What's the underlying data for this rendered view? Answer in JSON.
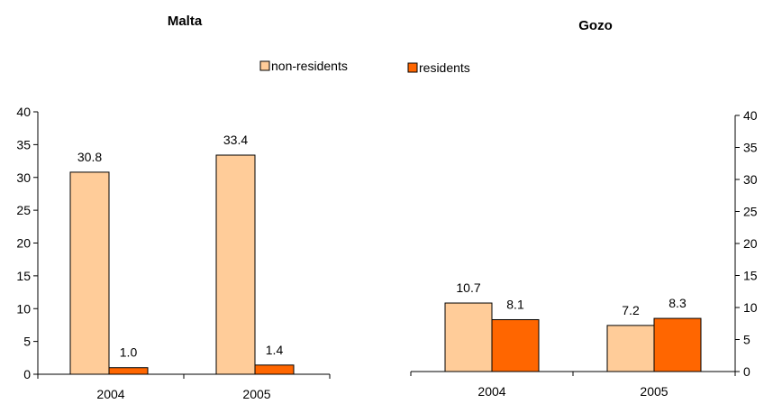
{
  "chart_data": [
    {
      "type": "bar",
      "title": "Malta",
      "categories": [
        "2004",
        "2005"
      ],
      "series": [
        {
          "name": "non-residents",
          "values": [
            30.8,
            33.4
          ],
          "labels": [
            "30.8",
            "33.4"
          ]
        },
        {
          "name": "residents",
          "values": [
            1.0,
            1.4
          ],
          "labels": [
            "1.0",
            "1.4"
          ]
        }
      ],
      "ylim": [
        0,
        40
      ],
      "yticks": [
        "0",
        "5",
        "10",
        "15",
        "20",
        "25",
        "30",
        "35",
        "40"
      ],
      "y_axis_side": "left",
      "grid": false
    },
    {
      "type": "bar",
      "title": "Gozo",
      "categories": [
        "2004",
        "2005"
      ],
      "series": [
        {
          "name": "non-residents",
          "values": [
            10.7,
            7.2
          ],
          "labels": [
            "10.7",
            "7.2"
          ]
        },
        {
          "name": "residents",
          "values": [
            8.1,
            8.3
          ],
          "labels": [
            "8.1",
            "8.3"
          ]
        }
      ],
      "ylim": [
        0,
        40
      ],
      "yticks": [
        "0",
        "5",
        "10",
        "15",
        "20",
        "25",
        "30",
        "35",
        "40"
      ],
      "y_axis_side": "right",
      "grid": false
    }
  ],
  "legend": {
    "placement": "top-center",
    "items": [
      {
        "label": "non-residents",
        "color": "#FFCC99"
      },
      {
        "label": "residents",
        "color": "#FF6600"
      }
    ]
  },
  "colors": {
    "non_residents": "#FFCC99",
    "residents": "#FF6600",
    "outline": "#000000"
  }
}
